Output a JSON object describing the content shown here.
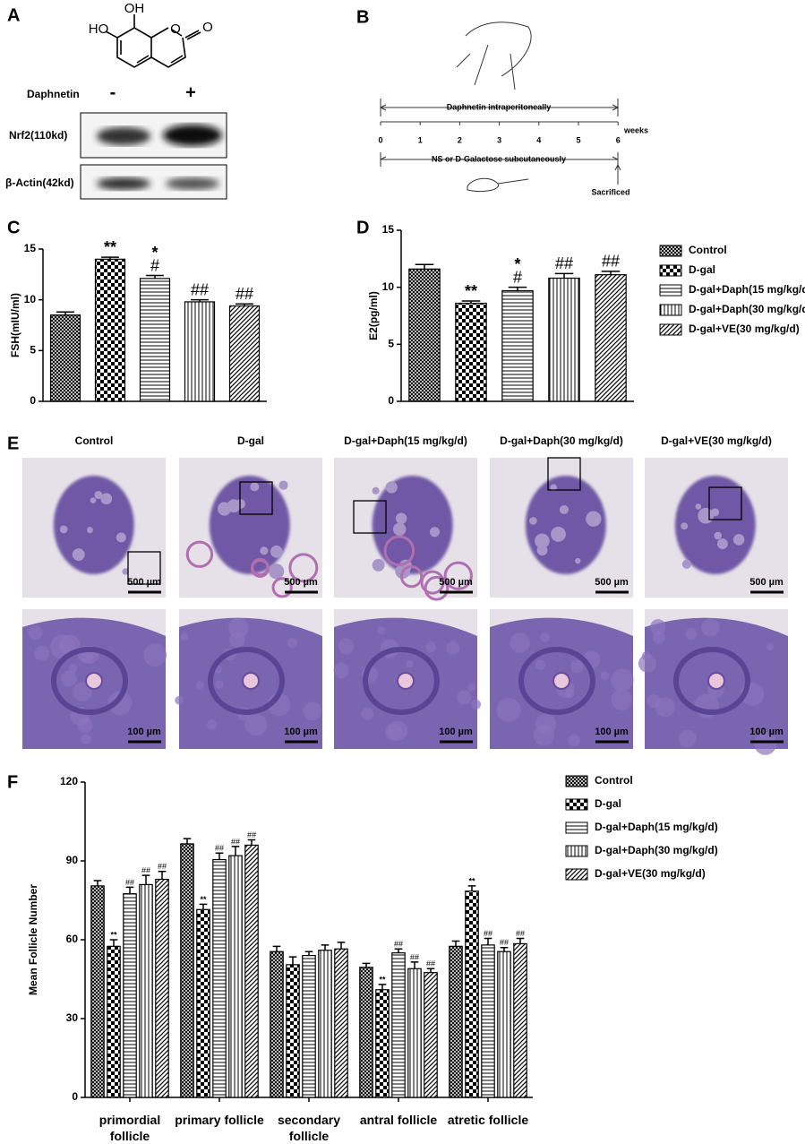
{
  "panel_labels": [
    "A",
    "B",
    "C",
    "D",
    "E",
    "F"
  ],
  "panel_a": {
    "structure": {
      "hydroxyl_top": "OH",
      "hydroxyl_left": "HO",
      "ring_oxygen": "O",
      "carbonyl_oxygen": "O"
    },
    "treatment": "Daphnetin",
    "conditions": [
      "-",
      "+"
    ],
    "blots": [
      "Nrf2(110kd)",
      "β-Actin(42kd)"
    ]
  },
  "panel_b": {
    "treatment": "Daphnetin  intraperitoneally",
    "weeks": [
      0,
      1,
      2,
      3,
      4,
      5,
      6
    ],
    "unit": "weeks",
    "control": "NS or D-Galactose subcutaneously",
    "endpoint": "Sacrificed"
  },
  "panel_e": {
    "groups": [
      "Control",
      "D-gal",
      "D-gal+Daph(15 mg/kg/d)",
      "D-gal+Daph(30 mg/kg/d)",
      "D-gal+VE(30 mg/kg/d)"
    ],
    "scale_low_mag": "500 µm",
    "scale_high_mag": "100 µm"
  },
  "chart_data": [
    {
      "type": "bar",
      "y_label": "FSH(mIU/ml)",
      "ylim": [
        0,
        15
      ],
      "yticks": [
        0,
        5,
        10,
        15
      ],
      "series": [
        {
          "pattern": "crosshatch",
          "values": [
            8.5
          ],
          "errors": [
            0.3
          ],
          "annotations": [
            null
          ]
        },
        {
          "pattern": "checker",
          "values": [
            14.0
          ],
          "errors": [
            0.2
          ],
          "annotations": [
            [
              "**"
            ]
          ]
        },
        {
          "pattern": "hlines",
          "values": [
            12.1
          ],
          "errors": [
            0.3
          ],
          "annotations": [
            [
              "*",
              "#"
            ]
          ]
        },
        {
          "pattern": "vlines",
          "values": [
            9.8
          ],
          "errors": [
            0.2
          ],
          "annotations": [
            [
              "##"
            ]
          ]
        },
        {
          "pattern": "diagonal",
          "values": [
            9.4
          ],
          "errors": [
            0.2
          ],
          "annotations": [
            [
              "##"
            ]
          ]
        }
      ]
    },
    {
      "type": "bar",
      "y_label": "E2(pg/ml)",
      "ylim": [
        0,
        15
      ],
      "yticks": [
        0,
        5,
        10,
        15
      ],
      "legend": "right",
      "series": [
        {
          "name": "Control",
          "pattern": "crosshatch",
          "values": [
            11.6
          ],
          "errors": [
            0.4
          ],
          "annotations": [
            null
          ]
        },
        {
          "name": "D-gal",
          "pattern": "checker",
          "values": [
            8.6
          ],
          "errors": [
            0.2
          ],
          "annotations": [
            [
              "**"
            ]
          ]
        },
        {
          "name": "D-gal+Daph(15 mg/kg/d)",
          "pattern": "hlines",
          "values": [
            9.7
          ],
          "errors": [
            0.3
          ],
          "annotations": [
            [
              "*",
              "#"
            ]
          ]
        },
        {
          "name": "D-gal+Daph(30 mg/kg/d)",
          "pattern": "vlines",
          "values": [
            10.8
          ],
          "errors": [
            0.4
          ],
          "annotations": [
            [
              "##"
            ]
          ]
        },
        {
          "name": "D-gal+VE(30 mg/kg/d)",
          "pattern": "diagonal",
          "values": [
            11.1
          ],
          "errors": [
            0.3
          ],
          "annotations": [
            [
              "##"
            ]
          ]
        }
      ]
    },
    {
      "type": "bar",
      "y_label": "Mean Follicle Number",
      "ylim": [
        0,
        120
      ],
      "yticks": [
        0,
        30,
        60,
        90,
        120
      ],
      "legend": "right",
      "categories": [
        "primordial follicle",
        "primary follicle",
        "secondary follicle",
        "antral follicle",
        "atretic follicle"
      ],
      "series": [
        {
          "name": "Control",
          "pattern": "crosshatch",
          "values": [
            80.5,
            96.5,
            55.5,
            49.5,
            57.5
          ],
          "errors": [
            2,
            2,
            2,
            1.5,
            2
          ],
          "annotations": [
            null,
            null,
            null,
            null,
            null
          ]
        },
        {
          "name": "D-gal",
          "pattern": "checker",
          "values": [
            57.5,
            71.5,
            50.5,
            41,
            78.5
          ],
          "errors": [
            2.5,
            2,
            3,
            2,
            2
          ],
          "annotations": [
            [
              "**"
            ],
            [
              "**"
            ],
            null,
            [
              "**"
            ],
            [
              "**"
            ]
          ]
        },
        {
          "name": "D-gal+Daph(15 mg/kg/d)",
          "pattern": "hlines",
          "values": [
            77.5,
            90.5,
            54,
            55,
            58
          ],
          "errors": [
            2.5,
            2.5,
            1.5,
            1.5,
            2.5
          ],
          "annotations": [
            [
              "##"
            ],
            [
              "##"
            ],
            null,
            [
              "##"
            ],
            [
              "##"
            ]
          ]
        },
        {
          "name": "D-gal+Daph(30 mg/kg/d)",
          "pattern": "vlines",
          "values": [
            81,
            92,
            56,
            49,
            55.5
          ],
          "errors": [
            3.5,
            3.5,
            2,
            2.5,
            1.5
          ],
          "annotations": [
            [
              "##"
            ],
            [
              "##"
            ],
            null,
            [
              "##"
            ],
            [
              "##"
            ]
          ]
        },
        {
          "name": "D-gal+VE(30 mg/kg/d)",
          "pattern": "diagonal",
          "values": [
            83,
            96,
            56.5,
            47.5,
            58.5
          ],
          "errors": [
            3,
            2,
            2.5,
            1.5,
            2
          ],
          "annotations": [
            [
              "##"
            ],
            [
              "##"
            ],
            null,
            [
              "##"
            ],
            [
              "##"
            ]
          ]
        }
      ]
    }
  ]
}
